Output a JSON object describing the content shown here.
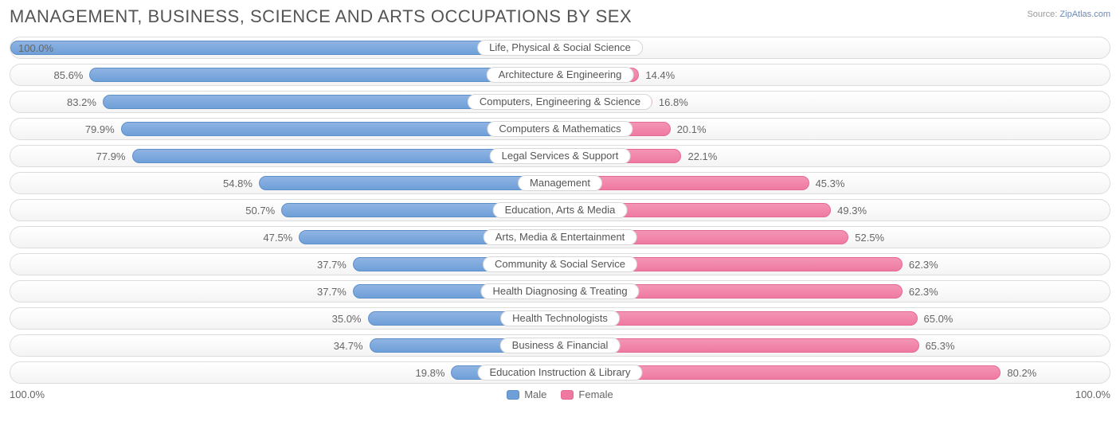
{
  "title": "MANAGEMENT, BUSINESS, SCIENCE AND ARTS OCCUPATIONS BY SEX",
  "source_label": "Source:",
  "source_value": "ZipAtlas.com",
  "colors": {
    "male_bar": "#6f9fd8",
    "male_border": "#5e8fc9",
    "female_bar": "#ef7aa1",
    "female_border": "#e56a93",
    "track_border": "#dcdcdc",
    "text": "#666666",
    "title_text": "#555555"
  },
  "legend": {
    "male": "Male",
    "female": "Female"
  },
  "axis": {
    "left": "100.0%",
    "right": "100.0%"
  },
  "chart": {
    "type": "diverging-bar",
    "half_width_pct": 50,
    "rows": [
      {
        "label": "Life, Physical & Social Science",
        "male": 100.0,
        "female": 0.0
      },
      {
        "label": "Architecture & Engineering",
        "male": 85.6,
        "female": 14.4
      },
      {
        "label": "Computers, Engineering & Science",
        "male": 83.2,
        "female": 16.8
      },
      {
        "label": "Computers & Mathematics",
        "male": 79.9,
        "female": 20.1
      },
      {
        "label": "Legal Services & Support",
        "male": 77.9,
        "female": 22.1
      },
      {
        "label": "Management",
        "male": 54.8,
        "female": 45.3
      },
      {
        "label": "Education, Arts & Media",
        "male": 50.7,
        "female": 49.3
      },
      {
        "label": "Arts, Media & Entertainment",
        "male": 47.5,
        "female": 52.5
      },
      {
        "label": "Community & Social Service",
        "male": 37.7,
        "female": 62.3
      },
      {
        "label": "Health Diagnosing & Treating",
        "male": 37.7,
        "female": 62.3
      },
      {
        "label": "Health Technologists",
        "male": 35.0,
        "female": 65.0
      },
      {
        "label": "Business & Financial",
        "male": 34.7,
        "female": 65.3
      },
      {
        "label": "Education Instruction & Library",
        "male": 19.8,
        "female": 80.2
      }
    ]
  }
}
